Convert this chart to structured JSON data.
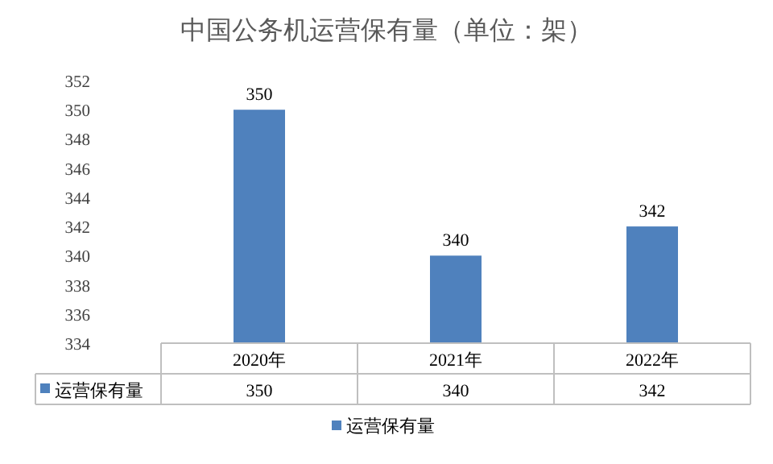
{
  "chart_data": {
    "type": "bar",
    "title": "中国公务机运营保有量（单位：架）",
    "categories": [
      "2020年",
      "2021年",
      "2022年"
    ],
    "series": [
      {
        "name": "运营保有量",
        "color": "#4f81bd",
        "values": [
          350,
          340,
          342
        ],
        "value_labels": [
          "350",
          "340",
          "342"
        ]
      }
    ],
    "ylim": [
      334,
      352
    ],
    "yticks": [
      334,
      336,
      338,
      340,
      342,
      344,
      346,
      348,
      350,
      352
    ],
    "data_labels": true,
    "legend": "bottom"
  }
}
